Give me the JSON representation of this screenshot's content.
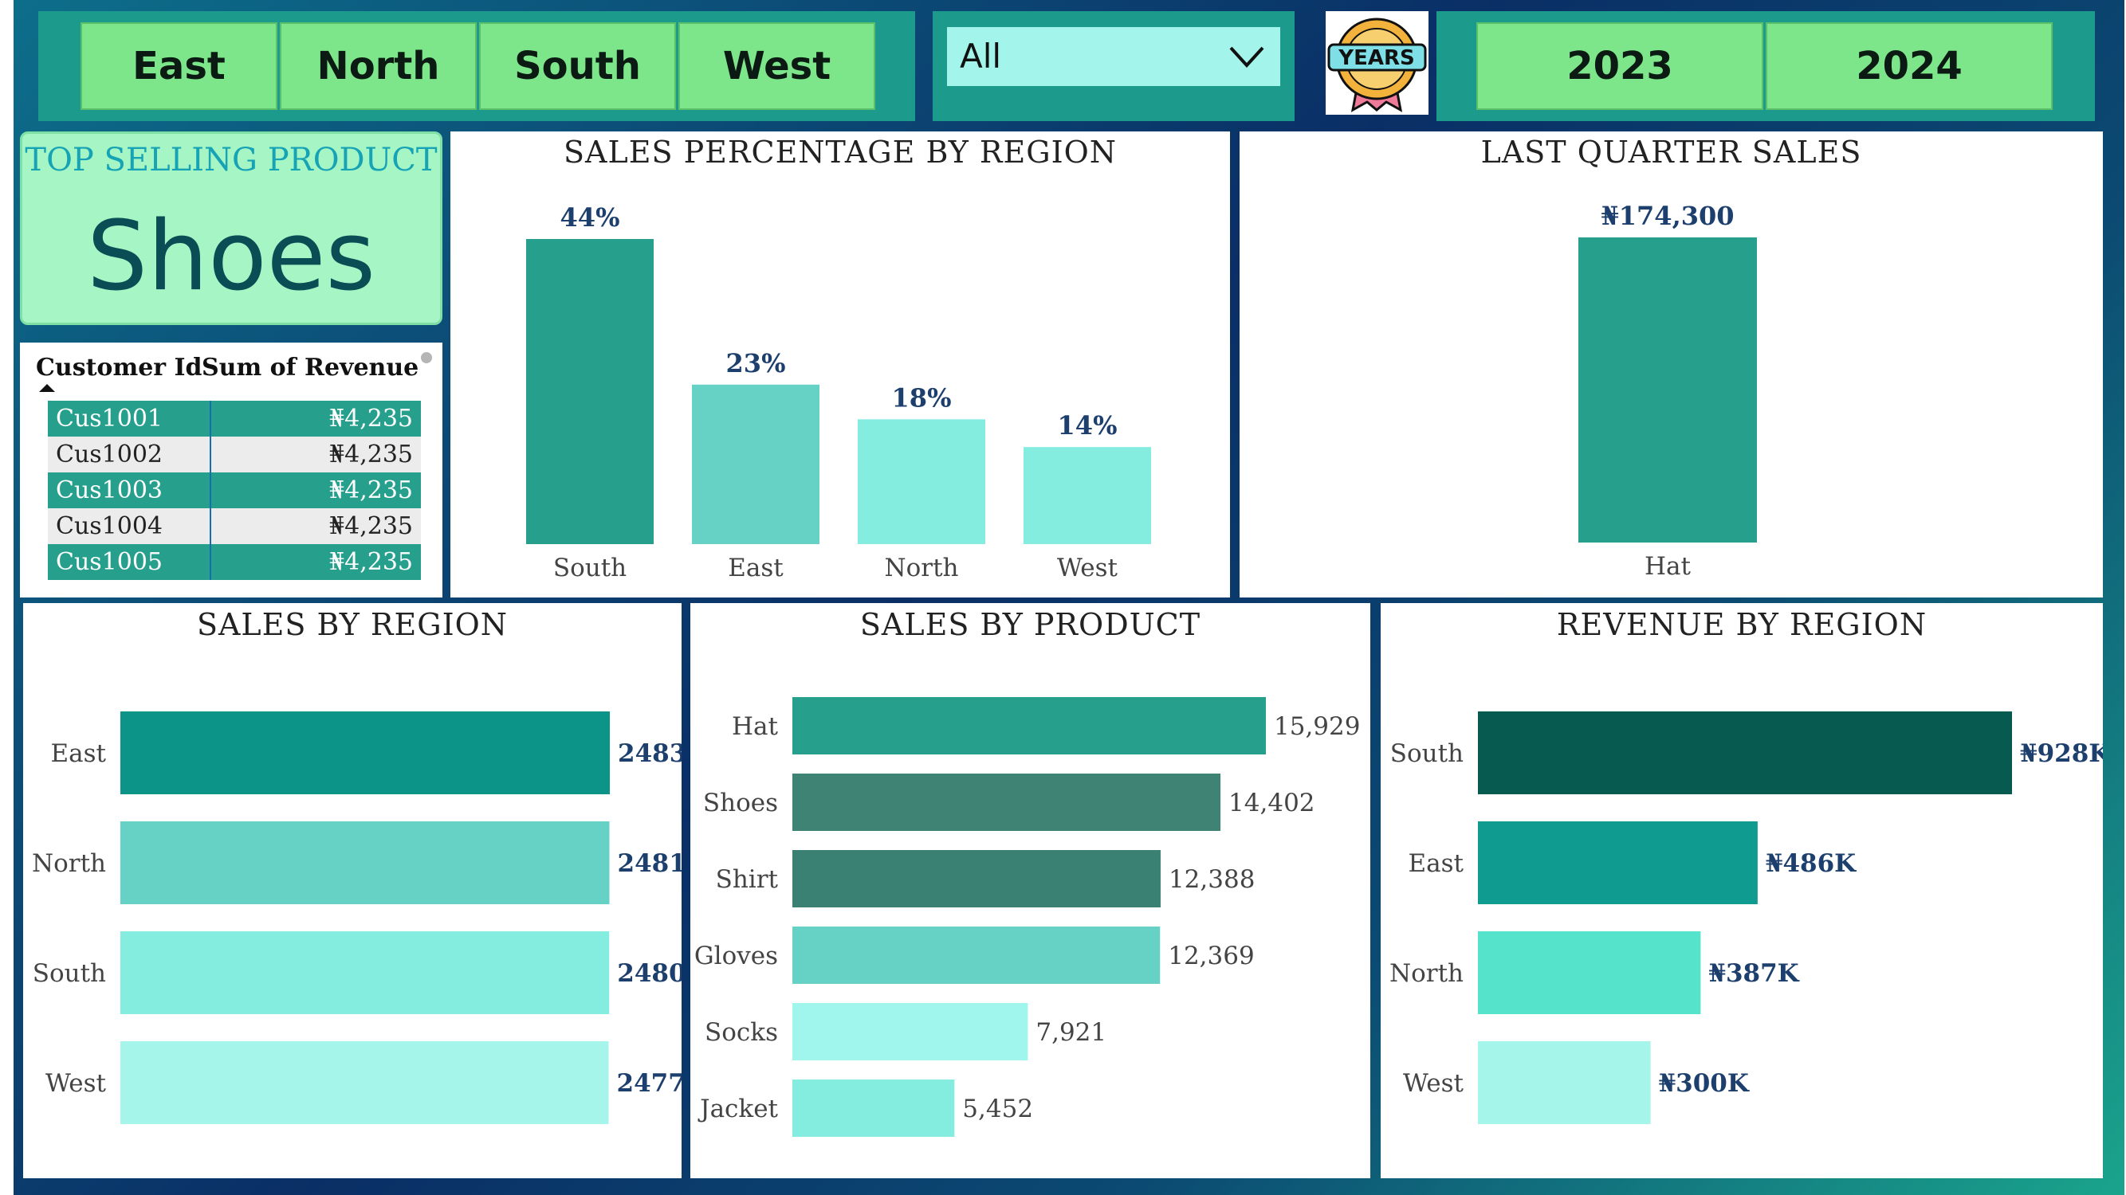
{
  "region_slicer": {
    "buttons": [
      "East",
      "North",
      "South",
      "West"
    ]
  },
  "product_dropdown": {
    "value": "All"
  },
  "years_badge": {
    "label": "YEARS"
  },
  "year_slicer": {
    "buttons": [
      "2023",
      "2024"
    ]
  },
  "top_product": {
    "heading": "TOP SELLING PRODUCT",
    "value": "Shoes"
  },
  "customer_table": {
    "headers": [
      "Customer Id",
      "Sum of Revenue"
    ],
    "rows": [
      {
        "id": "Cus1001",
        "revenue": "₦4,235"
      },
      {
        "id": "Cus1002",
        "revenue": "₦4,235"
      },
      {
        "id": "Cus1003",
        "revenue": "₦4,235"
      },
      {
        "id": "Cus1004",
        "revenue": "₦4,235"
      },
      {
        "id": "Cus1005",
        "revenue": "₦4,235"
      }
    ]
  },
  "colors": {
    "dark_teal": "#26a08d",
    "mid_teal": "#66d2c6",
    "light_teal": "#85ece0",
    "pale_teal": "#a6f5ea",
    "slicer_green": "#7de68a"
  },
  "chart_data": [
    {
      "id": "sales_pct",
      "type": "bar",
      "title": "SALES PERCENTAGE BY REGION",
      "categories": [
        "South",
        "East",
        "North",
        "West"
      ],
      "values": [
        44,
        23,
        18,
        14
      ],
      "labels": [
        "44%",
        "23%",
        "18%",
        "14%"
      ],
      "ylim": [
        0,
        44
      ]
    },
    {
      "id": "last_quarter",
      "type": "bar",
      "title": "LAST QUARTER SALES",
      "categories": [
        "Hat"
      ],
      "values": [
        174300
      ],
      "labels": [
        "₦174,300"
      ],
      "ylim": [
        0,
        174300
      ]
    },
    {
      "id": "sales_region",
      "type": "bar",
      "orientation": "horizontal",
      "title": "SALES BY REGION",
      "categories": [
        "East",
        "North",
        "South",
        "West"
      ],
      "values": [
        2483,
        2481,
        2480,
        2477
      ],
      "labels": [
        "2483",
        "2481",
        "2480",
        "2477"
      ],
      "xlim": [
        0,
        2483
      ]
    },
    {
      "id": "sales_product",
      "type": "bar",
      "orientation": "horizontal",
      "title": "SALES BY PRODUCT",
      "categories": [
        "Hat",
        "Shoes",
        "Shirt",
        "Gloves",
        "Socks",
        "Jacket"
      ],
      "values": [
        15929,
        14402,
        12388,
        12369,
        7921,
        5452
      ],
      "labels": [
        "15,929",
        "14,402",
        "12,388",
        "12,369",
        "7,921",
        "5,452"
      ],
      "xlim": [
        0,
        15929
      ]
    },
    {
      "id": "revenue_region",
      "type": "bar",
      "orientation": "horizontal",
      "title": "REVENUE BY REGION",
      "categories": [
        "South",
        "East",
        "North",
        "West"
      ],
      "values": [
        928,
        486,
        387,
        300
      ],
      "labels": [
        "₦928K",
        "₦486K",
        "₦387K",
        "₦300K"
      ],
      "xlim": [
        0,
        928
      ]
    }
  ]
}
